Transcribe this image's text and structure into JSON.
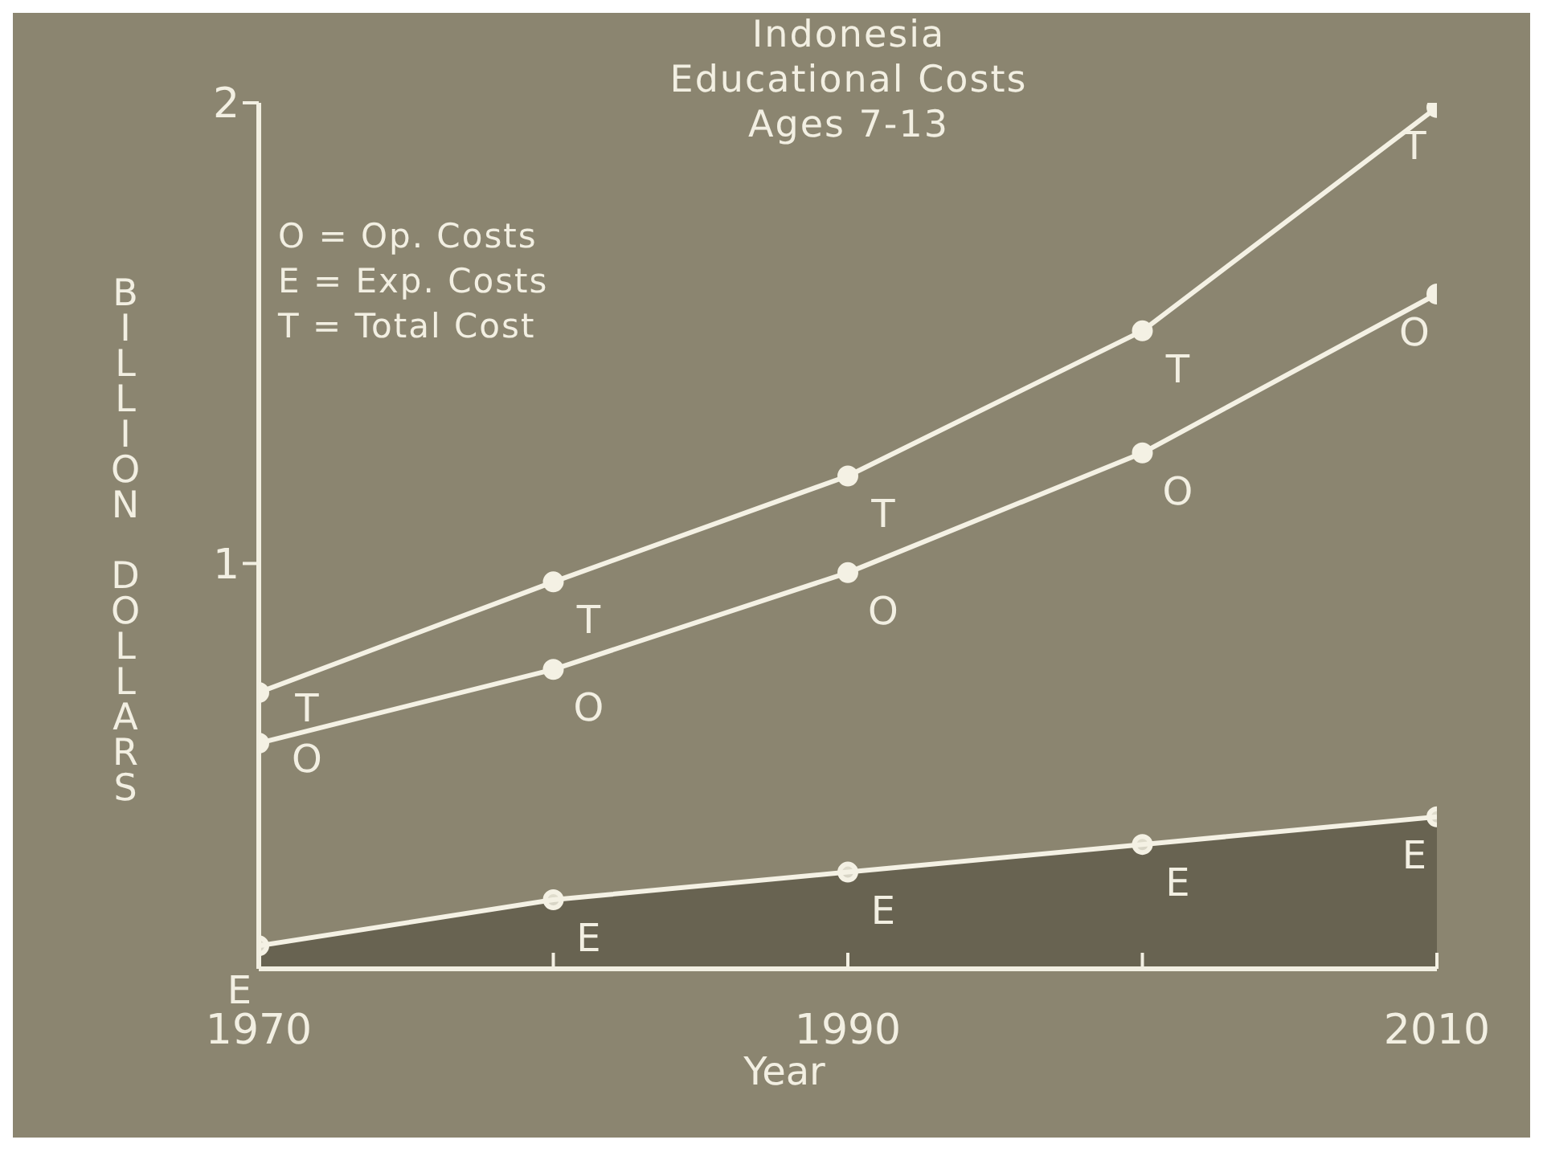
{
  "chart_data": {
    "type": "line",
    "title": "Indonesia\nEducational Costs\nAges 7-13",
    "xlabel": "Year",
    "ylabel": "BILLION DOLLARS",
    "x": [
      1970,
      1980,
      1990,
      2000,
      2010
    ],
    "series": [
      {
        "color": "#f4f1e4",
        "values": [
          0.61,
          0.77,
          0.98,
          1.24,
          1.585
        ]
      },
      {
        "color": "#f4f1e4",
        "type": "area",
        "values": [
          0.17,
          0.27,
          0.33,
          0.39,
          0.45
        ]
      },
      {
        "color": "#f4f1e4",
        "values": [
          0.72,
          0.96,
          1.19,
          1.505,
          1.99
        ]
      }
    ],
    "xlim": [
      1970,
      2010
    ],
    "xticks": [
      1970,
      {
        "value": 1980,
        "label": null
      },
      1990,
      {
        "value": 2000,
        "label": null
      },
      2010
    ],
    "ylim": [
      0.12,
      2
    ],
    "yticks": [
      1,
      2
    ],
    "annotations": [
      "O = Op. Costs",
      "E = Exp. Costs",
      "T = Total Cost",
      {
        "text": "T",
        "x": 1970,
        "y": 0.72
      },
      {
        "text": "T",
        "x": 1980,
        "y": 0.96
      },
      {
        "text": "T",
        "x": 1990,
        "y": 1.19
      },
      {
        "text": "T",
        "x": 2000,
        "y": 1.505
      },
      {
        "text": "T",
        "x": 2010,
        "y": 1.99
      },
      {
        "text": "O",
        "x": 1970,
        "y": 0.61
      },
      {
        "text": "O",
        "x": 1980,
        "y": 0.77
      },
      {
        "text": "O",
        "x": 1990,
        "y": 0.98
      },
      {
        "text": "O",
        "x": 2000,
        "y": 1.24
      },
      {
        "text": "O",
        "x": 2010,
        "y": 1.585
      },
      {
        "text": "E",
        "x": 1970,
        "y": 0.17
      },
      {
        "text": "E",
        "x": 1980,
        "y": 0.27
      },
      {
        "text": "E",
        "x": 1990,
        "y": 0.33
      },
      {
        "text": "E",
        "x": 2000,
        "y": 0.39
      },
      {
        "text": "E",
        "x": 2010,
        "y": 0.45
      }
    ],
    "grid": false,
    "marker": "circle",
    "line_style": "solid"
  }
}
